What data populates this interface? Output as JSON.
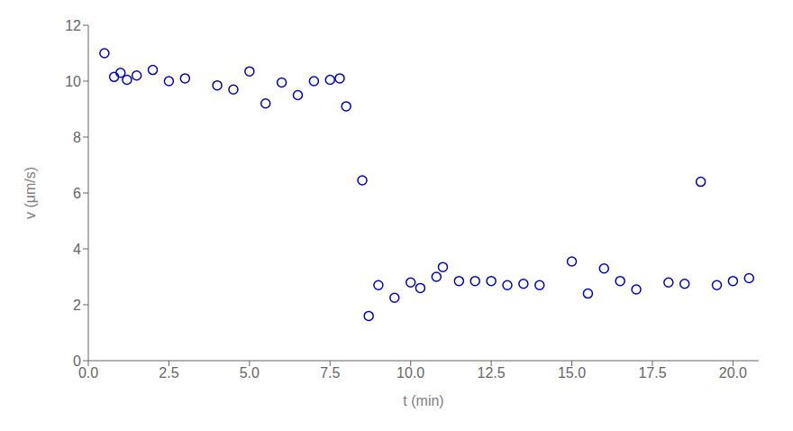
{
  "chart_data": {
    "type": "scatter",
    "x": [
      0.5,
      0.8,
      1.0,
      1.2,
      1.5,
      2.0,
      2.5,
      3.0,
      4.0,
      4.5,
      5.0,
      5.5,
      6.0,
      6.5,
      7.0,
      7.5,
      7.8,
      8.0,
      8.5,
      8.7,
      9.0,
      9.5,
      10.0,
      10.3,
      10.8,
      11.0,
      11.5,
      12.0,
      12.5,
      13.0,
      13.5,
      14.0,
      15.0,
      15.5,
      16.0,
      16.5,
      17.0,
      18.0,
      18.5,
      19.0,
      19.5,
      20.0,
      20.5
    ],
    "values": [
      11.0,
      10.15,
      10.3,
      10.05,
      10.2,
      10.4,
      10.0,
      10.1,
      9.85,
      9.7,
      10.35,
      9.2,
      9.95,
      9.5,
      10.0,
      10.05,
      10.1,
      9.1,
      6.45,
      1.6,
      2.7,
      2.25,
      2.8,
      2.6,
      3.0,
      3.35,
      2.85,
      2.85,
      2.85,
      2.7,
      2.75,
      2.7,
      3.55,
      2.4,
      3.3,
      2.85,
      2.55,
      2.8,
      2.75,
      6.4,
      2.7,
      2.85,
      2.95
    ],
    "color": "#0000cc",
    "marker": "o",
    "xlabel": "t (min)",
    "ylabel": "v (μm/s)",
    "xlim": [
      0,
      20.8
    ],
    "ylim": [
      0,
      12
    ],
    "xticks": [
      {
        "value": 0,
        "label": "0.0"
      },
      2.5,
      {
        "value": 5,
        "label": "5.0"
      },
      7.5,
      {
        "value": 10,
        "label": "10.0"
      },
      12.5,
      {
        "value": 15,
        "label": "15.0"
      },
      17.5,
      {
        "value": 20,
        "label": "20.0"
      }
    ],
    "yticks": [
      0,
      2,
      4,
      6,
      8,
      10,
      12
    ],
    "grid": false
  }
}
